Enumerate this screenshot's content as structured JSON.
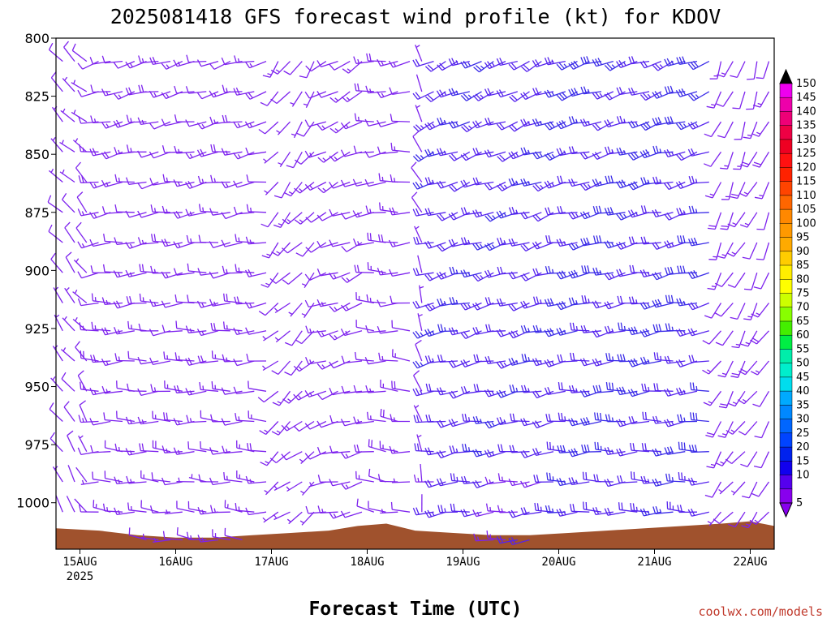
{
  "chart_data": {
    "type": "wind_barb_profile",
    "title": "2025081418 GFS forecast wind profile (kt) for KDOV",
    "xlabel": "Forecast Time (UTC)",
    "ylabel": "",
    "credit": "coolwx.com/models",
    "y_axis": {
      "reversed": true,
      "range": [
        800,
        1020
      ],
      "ticks": [
        "800",
        "825",
        "850",
        "875",
        "900",
        "925",
        "950",
        "975",
        "1000"
      ]
    },
    "x_axis": {
      "range_days": [
        14.75,
        22.25
      ],
      "ticks": [
        {
          "day": 15,
          "label": "15AUG",
          "sublabel": "2025"
        },
        {
          "day": 16,
          "label": "16AUG",
          "sublabel": ""
        },
        {
          "day": 17,
          "label": "17AUG",
          "sublabel": ""
        },
        {
          "day": 18,
          "label": "18AUG",
          "sublabel": ""
        },
        {
          "day": 19,
          "label": "19AUG",
          "sublabel": ""
        },
        {
          "day": 20,
          "label": "20AUG",
          "sublabel": ""
        },
        {
          "day": 21,
          "label": "21AUG",
          "sublabel": ""
        },
        {
          "day": 22,
          "label": "22AUG",
          "sublabel": ""
        }
      ]
    },
    "levels": [
      810,
      823,
      836,
      849,
      862,
      875,
      888,
      901,
      914,
      926,
      939,
      952,
      965,
      978,
      991,
      1004,
      1016
    ],
    "times_per_day": 8,
    "regimes": [
      {
        "t0": 14.75,
        "t1": 15.15,
        "dir": 320,
        "spd": 7
      },
      {
        "t0": 15.15,
        "t1": 17.05,
        "dir": 265,
        "spd": 14
      },
      {
        "t0": 17.05,
        "t1": 17.55,
        "dir": 225,
        "spd": 10
      },
      {
        "t0": 17.55,
        "t1": 18.05,
        "dir": 250,
        "spd": 12
      },
      {
        "t0": 18.05,
        "t1": 18.45,
        "dir": 270,
        "spd": 14
      },
      {
        "t0": 18.45,
        "t1": 18.6,
        "dir": 340,
        "spd": 6
      },
      {
        "t0": 18.6,
        "t1": 20.0,
        "dir": 255,
        "spd": 22
      },
      {
        "t0": 20.0,
        "t1": 21.6,
        "dir": 260,
        "spd": 25
      },
      {
        "t0": 21.6,
        "t1": 22.3,
        "dir": 210,
        "spd": 14
      }
    ],
    "surface_pressure": [
      {
        "day": 14.75,
        "p": 1011
      },
      {
        "day": 15.2,
        "p": 1012
      },
      {
        "day": 15.6,
        "p": 1014
      },
      {
        "day": 16.0,
        "p": 1015
      },
      {
        "day": 16.4,
        "p": 1015
      },
      {
        "day": 16.8,
        "p": 1014
      },
      {
        "day": 17.2,
        "p": 1013
      },
      {
        "day": 17.6,
        "p": 1012
      },
      {
        "day": 17.9,
        "p": 1010
      },
      {
        "day": 18.2,
        "p": 1009
      },
      {
        "day": 18.5,
        "p": 1012
      },
      {
        "day": 18.9,
        "p": 1013
      },
      {
        "day": 19.3,
        "p": 1014
      },
      {
        "day": 19.7,
        "p": 1014
      },
      {
        "day": 20.1,
        "p": 1013
      },
      {
        "day": 20.5,
        "p": 1012
      },
      {
        "day": 20.9,
        "p": 1011
      },
      {
        "day": 21.3,
        "p": 1010
      },
      {
        "day": 21.7,
        "p": 1009
      },
      {
        "day": 22.0,
        "p": 1008
      },
      {
        "day": 22.25,
        "p": 1010
      }
    ],
    "colorbar": {
      "labels": [
        "150",
        "145",
        "140",
        "135",
        "130",
        "125",
        "120",
        "115",
        "110",
        "105",
        "100",
        "95",
        "90",
        "85",
        "80",
        "75",
        "70",
        "65",
        "60",
        "55",
        "50",
        "45",
        "40",
        "35",
        "30",
        "25",
        "20",
        "15",
        "10",
        "5"
      ],
      "colors": [
        "#ee00ee",
        "#ee00aa",
        "#ee0077",
        "#ee0044",
        "#ee0022",
        "#ff1111",
        "#ff2200",
        "#ff4400",
        "#ff6600",
        "#ff8800",
        "#ff9900",
        "#ffaa00",
        "#ffcc00",
        "#ffee00",
        "#ffff00",
        "#ccff00",
        "#88ff00",
        "#44ee00",
        "#00ee44",
        "#00eeaa",
        "#00eecc",
        "#00ddee",
        "#00aaff",
        "#0088ff",
        "#0066ff",
        "#0044ff",
        "#0022ee",
        "#1100ee",
        "#5500ee",
        "#8800ee"
      ],
      "top_cap": "#000000",
      "bottom_cap": "#8800ee"
    },
    "ground_color": "#a0522d"
  }
}
